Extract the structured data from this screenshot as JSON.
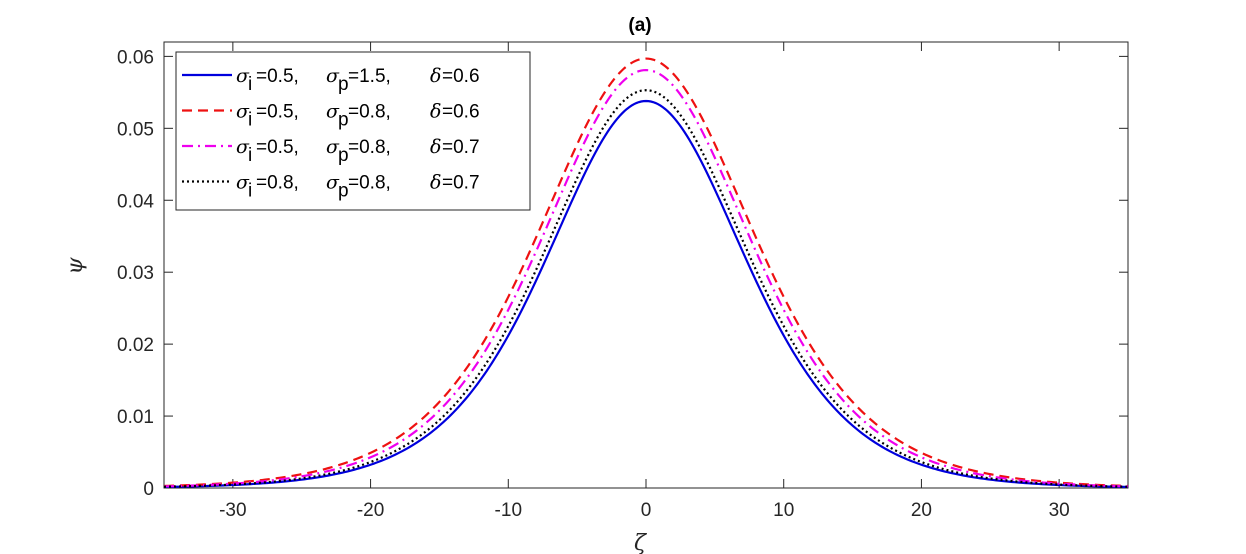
{
  "chart_data": {
    "type": "line",
    "title": "(a)",
    "xlabel": "ζ",
    "ylabel": "ψ",
    "xlim": [
      -35,
      35
    ],
    "ylim": [
      0,
      0.062
    ],
    "xticks": [
      -30,
      -20,
      -10,
      0,
      10,
      20,
      30
    ],
    "xtick_labels": [
      "-30",
      "-20",
      "-10",
      "0",
      "10",
      "20",
      "30"
    ],
    "yticks": [
      0,
      0.01,
      0.02,
      0.03,
      0.04,
      0.05,
      0.06
    ],
    "ytick_labels": [
      "0",
      "0.01",
      "0.02",
      "0.03",
      "0.04",
      "0.05",
      "0.06"
    ],
    "grid": false,
    "legend_position": "top-left",
    "series": [
      {
        "name": "σi=0.5, σp=1.5, δ=0.6",
        "legend": {
          "s1": "σ",
          "sub1": "i",
          "v1": "=0.5,",
          "s2": "σ",
          "sub2": "p",
          "v2": "=1.5,",
          "s3": "δ",
          "v3": "=0.6"
        },
        "color": "#0000dd",
        "dash": "solid",
        "peak": 0.0538,
        "width": 9.6
      },
      {
        "name": "σi=0.5, σp=0.8, δ=0.6",
        "legend": {
          "s1": "σ",
          "sub1": "i",
          "v1": "=0.5,",
          "s2": "σ",
          "sub2": "p",
          "v2": "=0.8,",
          "s3": "δ",
          "v3": "=0.6"
        },
        "color": "#ee1111",
        "dash": "dashed",
        "peak": 0.0597,
        "width": 10.4
      },
      {
        "name": "σi=0.5, σp=0.8, δ=0.7",
        "legend": {
          "s1": "σ",
          "sub1": "i",
          "v1": "=0.5,",
          "s2": "σ",
          "sub2": "p",
          "v2": "=0.8,",
          "s3": "δ",
          "v3": "=0.7"
        },
        "color": "#ee00ee",
        "dash": "dashdot",
        "peak": 0.0581,
        "width": 10.1
      },
      {
        "name": "σi=0.8, σp=0.8, δ=0.7",
        "legend": {
          "s1": "σ",
          "sub1": "i",
          "v1": "=0.8,",
          "s2": "σ",
          "sub2": "p",
          "v2": "=0.8,",
          "s3": "δ",
          "v3": "=0.7"
        },
        "color": "#000000",
        "dash": "dotted",
        "peak": 0.0553,
        "width": 9.8
      }
    ]
  }
}
